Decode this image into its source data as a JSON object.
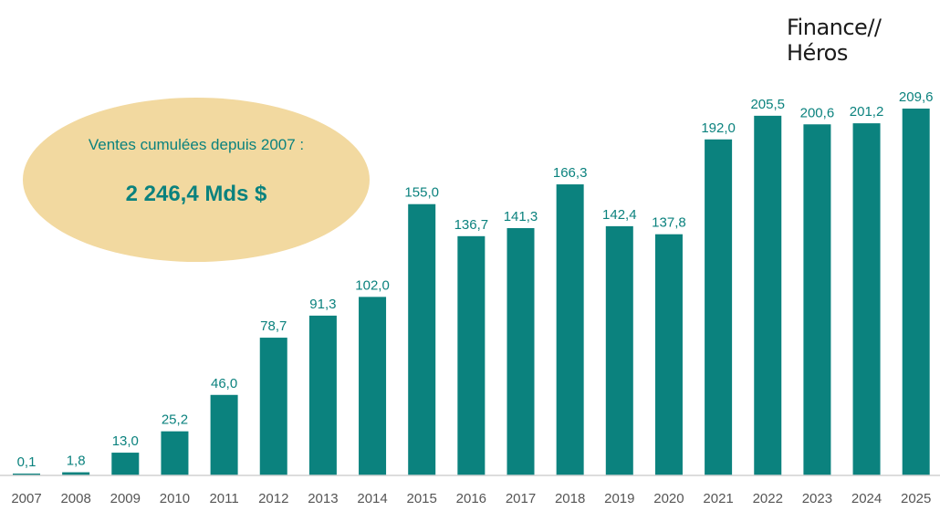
{
  "logo": {
    "text": "Finance//Héros"
  },
  "callout": {
    "label": "Ventes cumulées depuis 2007 :",
    "value": "2 246,4 Mds $"
  },
  "colors": {
    "bar": "#0b827e",
    "label": "#0b827e",
    "ellipse": "#f2d9a0",
    "axis": "#d0d0d0",
    "tick": "#555555"
  },
  "chart_data": {
    "type": "bar",
    "categories": [
      "2007",
      "2008",
      "2009",
      "2010",
      "2011",
      "2012",
      "2013",
      "2014",
      "2015",
      "2016",
      "2017",
      "2018",
      "2019",
      "2020",
      "2021",
      "2022",
      "2023",
      "2024",
      "2025"
    ],
    "values": [
      0.1,
      1.8,
      13.0,
      25.2,
      46.0,
      78.7,
      91.3,
      102.0,
      155.0,
      136.7,
      141.3,
      166.3,
      142.4,
      137.8,
      192.0,
      205.5,
      200.6,
      201.2,
      209.6
    ],
    "data_labels": [
      "0,1",
      "1,8",
      "13,0",
      "25,2",
      "46,0",
      "78,7",
      "91,3",
      "102,0",
      "155,0",
      "136,7",
      "141,3",
      "166,3",
      "142,4",
      "137,8",
      "192,0",
      "205,5",
      "200,6",
      "201,2",
      "209,6"
    ],
    "ylim": [
      0,
      210
    ],
    "grid": false,
    "legend": "none"
  }
}
